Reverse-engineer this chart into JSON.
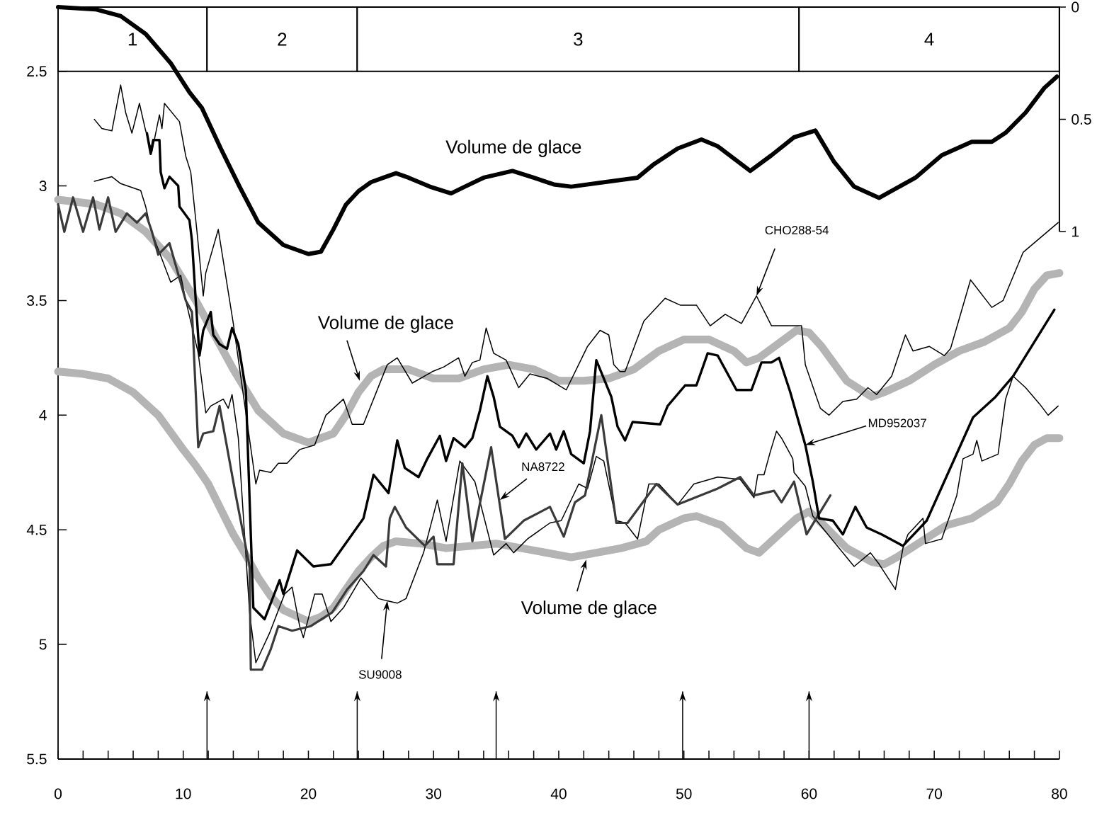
{
  "chart_data": {
    "type": "line",
    "xlim": [
      0,
      80
    ],
    "ylim": [
      5.5,
      2.22
    ],
    "y2lim": [
      3.35,
      0
    ],
    "xticks": [
      0,
      {
        "value": 2,
        "label": null
      },
      {
        "value": 4,
        "label": null
      },
      {
        "value": 6,
        "label": null
      },
      {
        "value": 8,
        "label": null
      },
      10,
      {
        "value": 12,
        "label": null
      },
      {
        "value": 14,
        "label": null
      },
      {
        "value": 16,
        "label": null
      },
      {
        "value": 18,
        "label": null
      },
      20,
      {
        "value": 22,
        "label": null
      },
      {
        "value": 24,
        "label": null
      },
      {
        "value": 26,
        "label": null
      },
      {
        "value": 28,
        "label": null
      },
      30,
      {
        "value": 32,
        "label": null
      },
      {
        "value": 34,
        "label": null
      },
      {
        "value": 36,
        "label": null
      },
      {
        "value": 38,
        "label": null
      },
      40,
      {
        "value": 42,
        "label": null
      },
      {
        "value": 44,
        "label": null
      },
      {
        "value": 46,
        "label": null
      },
      {
        "value": 48,
        "label": null
      },
      50,
      {
        "value": 52,
        "label": null
      },
      {
        "value": 54,
        "label": null
      },
      {
        "value": 56,
        "label": null
      },
      {
        "value": 58,
        "label": null
      },
      60,
      {
        "value": 62,
        "label": null
      },
      {
        "value": 64,
        "label": null
      },
      {
        "value": 66,
        "label": null
      },
      {
        "value": 68,
        "label": null
      },
      70,
      {
        "value": 72,
        "label": null
      },
      {
        "value": 74,
        "label": null
      },
      {
        "value": 76,
        "label": null
      },
      {
        "value": 78,
        "label": null
      },
      80
    ],
    "yticks": [
      2.5,
      3,
      3.5,
      4,
      4.5,
      5,
      5.5
    ],
    "y2ticks": [
      0,
      0.5,
      1
    ],
    "series": [
      {
        "color": "#b4b4b4",
        "x": [
          0,
          3,
          5,
          7,
          9,
          11,
          12,
          14,
          16,
          18,
          20,
          22,
          23,
          24,
          25,
          26,
          28,
          30,
          32,
          34,
          36,
          38,
          40,
          42,
          44,
          46,
          48,
          50,
          52,
          54,
          55,
          56,
          58,
          59,
          60,
          61,
          63,
          65,
          66,
          68,
          70,
          72,
          74,
          76,
          77,
          78,
          79,
          80
        ],
        "values": [
          3.06,
          3.08,
          3.12,
          3.2,
          3.32,
          3.5,
          3.6,
          3.8,
          3.98,
          4.08,
          4.12,
          4.08,
          4.0,
          3.9,
          3.83,
          3.8,
          3.8,
          3.84,
          3.84,
          3.8,
          3.78,
          3.8,
          3.85,
          3.85,
          3.84,
          3.8,
          3.72,
          3.67,
          3.67,
          3.72,
          3.77,
          3.75,
          3.67,
          3.63,
          3.64,
          3.7,
          3.85,
          3.92,
          3.9,
          3.85,
          3.78,
          3.72,
          3.68,
          3.62,
          3.55,
          3.45,
          3.39,
          3.38
        ]
      },
      {
        "color": "#b4b4b4",
        "x": [
          0,
          2,
          4,
          6,
          8,
          10,
          11,
          12,
          13,
          14,
          15,
          16,
          17,
          18,
          20,
          21,
          22,
          23,
          24,
          25,
          26,
          27,
          29,
          31,
          33,
          35,
          37,
          39,
          41,
          43,
          45,
          47,
          48,
          50,
          51,
          53,
          55,
          56,
          57,
          59,
          60,
          61,
          63,
          65,
          66,
          67,
          69,
          71,
          73,
          75,
          76,
          77,
          78,
          79,
          80
        ],
        "values": [
          3.81,
          3.82,
          3.84,
          3.9,
          4.0,
          4.15,
          4.22,
          4.3,
          4.41,
          4.52,
          4.61,
          4.71,
          4.79,
          4.85,
          4.9,
          4.88,
          4.84,
          4.76,
          4.68,
          4.62,
          4.57,
          4.55,
          4.56,
          4.58,
          4.57,
          4.56,
          4.58,
          4.6,
          4.62,
          4.6,
          4.58,
          4.55,
          4.5,
          4.45,
          4.44,
          4.48,
          4.58,
          4.6,
          4.55,
          4.45,
          4.42,
          4.47,
          4.58,
          4.64,
          4.65,
          4.62,
          4.55,
          4.48,
          4.45,
          4.38,
          4.3,
          4.2,
          4.13,
          4.1,
          4.1
        ]
      },
      {
        "color": "#000000",
        "x": [
          2.9,
          3.5,
          4.3,
          5,
          5.4,
          5.9,
          6.5,
          7,
          7.5,
          8.1,
          8.3,
          8.5,
          9.7,
          10.2,
          10.6,
          11.1,
          11.6,
          11.8,
          12.8,
          14,
          15.8,
          16.1,
          17,
          17.6,
          18.3,
          19.3,
          20.5,
          21.4,
          22.8,
          23.5,
          24.4,
          26.3,
          27.1,
          28.3,
          29.9,
          30.8,
          32,
          32.5,
          33.1,
          33.7,
          34.2,
          34.8,
          35.8,
          36.8,
          37.7,
          39.1,
          40.6,
          42.3,
          43.3,
          44,
          44.4,
          44.9,
          45.3,
          46.8,
          48.5,
          49.7,
          51,
          52.1,
          53.3,
          54.6,
          55.8,
          57,
          59.4,
          59.7,
          60.9,
          61.6,
          62.7,
          63.8,
          64.7,
          65.4,
          66.6,
          67.7,
          68.3,
          69.6,
          70.8,
          71.3,
          72.9,
          74.6,
          75.5,
          77.1,
          79.9
        ],
        "values": [
          2.71,
          2.75,
          2.76,
          2.56,
          2.68,
          2.77,
          2.64,
          2.76,
          2.85,
          2.69,
          2.75,
          2.64,
          2.72,
          2.87,
          2.94,
          3.2,
          3.48,
          3.38,
          3.19,
          3.6,
          4.3,
          4.24,
          4.25,
          4.21,
          4.21,
          4.15,
          4.13,
          4.0,
          3.93,
          4.04,
          4.04,
          3.78,
          3.75,
          3.86,
          3.81,
          3.79,
          3.75,
          3.83,
          3.77,
          3.76,
          3.62,
          3.73,
          3.76,
          3.88,
          3.82,
          3.84,
          3.89,
          3.7,
          3.63,
          3.65,
          3.78,
          3.81,
          3.81,
          3.59,
          3.49,
          3.52,
          3.52,
          3.61,
          3.56,
          3.6,
          3.48,
          3.61,
          3.61,
          3.78,
          3.97,
          4.0,
          3.94,
          3.93,
          3.88,
          3.91,
          3.83,
          3.65,
          3.72,
          3.7,
          3.74,
          3.71,
          3.41,
          3.53,
          3.5,
          3.29,
          3.16
        ]
      },
      {
        "color": "#000000",
        "x": [
          2.9,
          4.3,
          5,
          6.6,
          7,
          7.4,
          9,
          9.8,
          10.2,
          11.2,
          11.8,
          12.2,
          13.2,
          13.6,
          13.9,
          14.4,
          15.3,
          15.8,
          16.9,
          18.1,
          18.7,
          19.3,
          19.6,
          20.5,
          21.1,
          21.8,
          22.8,
          24.2,
          25.6,
          26.3,
          27.1,
          27.8,
          29.2,
          30.3,
          31,
          32.1,
          33.3,
          34.8,
          35.8,
          36.4,
          37.5,
          39.3,
          40.2,
          41.6,
          42.3,
          43,
          43.6,
          44.6,
          45.3,
          46.3,
          47.2,
          48,
          49.5,
          50.8,
          52.7,
          54.5,
          55.6,
          55.9,
          56.4,
          56.9,
          57.4,
          57.8,
          58.7,
          58.8,
          59.7,
          60.3,
          63.6,
          64.9,
          65.6,
          66.9,
          67.5,
          67.9,
          69.1,
          69.3,
          70.6,
          71.8,
          72.3,
          73.1,
          73.4,
          73.8,
          75.1,
          75.7,
          76.3,
          77.3,
          78.4,
          79.1,
          79.9
        ],
        "values": [
          2.98,
          2.96,
          2.99,
          3.02,
          3.09,
          3.19,
          3.42,
          3.39,
          3.5,
          3.73,
          3.99,
          3.96,
          3.93,
          3.97,
          3.91,
          4.1,
          4.86,
          5.08,
          4.95,
          4.78,
          4.75,
          4.92,
          4.97,
          4.78,
          4.78,
          4.9,
          4.84,
          4.71,
          4.8,
          4.81,
          4.82,
          4.8,
          4.6,
          4.37,
          4.55,
          4.2,
          4.29,
          4.61,
          4.56,
          4.6,
          4.54,
          4.47,
          4.46,
          4.3,
          4.32,
          4.18,
          4.2,
          4.46,
          4.47,
          4.54,
          4.3,
          4.3,
          4.39,
          4.3,
          4.27,
          4.28,
          4.36,
          4.26,
          4.26,
          4.16,
          4.07,
          4.1,
          4.19,
          4.25,
          4.31,
          4.44,
          4.66,
          4.6,
          4.65,
          4.76,
          4.58,
          4.52,
          4.45,
          4.56,
          4.54,
          4.35,
          4.19,
          4.17,
          4.11,
          4.2,
          4.17,
          3.93,
          3.83,
          3.88,
          3.95,
          4.0,
          3.96
        ]
      },
      {
        "color": "#3a3a3a",
        "x": [
          0,
          0.5,
          1.2,
          2,
          2.8,
          3.3,
          4,
          4.6,
          5.5,
          6.3,
          7,
          7.5,
          8,
          8.9,
          10.2,
          10.7,
          11.2,
          11.6,
          12.4,
          12.9,
          14.2,
          15.3,
          15.4,
          16.3,
          17,
          17.6,
          18.7,
          20.2,
          21.9,
          23.1,
          24.4,
          25.2,
          26.2,
          26.5,
          26.9,
          27.8,
          29.3,
          30,
          30.3,
          31.6,
          32.3,
          33.1,
          34.6,
          35.7,
          37.2,
          39.3,
          40.4,
          41.3,
          42.1,
          43.4,
          44.6,
          45.5,
          47.8,
          49.5,
          52.7,
          54.5,
          55.6,
          57.2,
          57.8,
          58.8,
          59.8,
          61.7
        ],
        "values": [
          3.08,
          3.2,
          3.05,
          3.2,
          3.05,
          3.19,
          3.05,
          3.2,
          3.12,
          3.16,
          3.12,
          3.2,
          3.3,
          3.25,
          3.5,
          3.55,
          4.14,
          4.08,
          4.07,
          3.96,
          4.35,
          4.66,
          5.11,
          5.11,
          5.02,
          4.92,
          4.94,
          4.92,
          4.86,
          4.76,
          4.68,
          4.61,
          4.66,
          4.45,
          4.4,
          4.49,
          4.57,
          4.53,
          4.65,
          4.65,
          4.21,
          4.55,
          4.14,
          4.54,
          4.46,
          4.4,
          4.53,
          4.38,
          4.35,
          4.0,
          4.47,
          4.47,
          4.3,
          4.39,
          4.32,
          4.27,
          4.35,
          4.33,
          4.38,
          4.29,
          4.52,
          4.35
        ]
      },
      {
        "color": "#000000",
        "x": [
          7.1,
          7.4,
          7.6,
          8.1,
          8.2,
          8.5,
          8.9,
          9.6,
          9.7,
          10.5,
          10.7,
          11,
          11.3,
          11.6,
          12.2,
          12.4,
          12.9,
          13.5,
          13.9,
          14.4,
          15,
          15.6,
          16.5,
          17.7,
          18,
          19.1,
          20.4,
          21.8,
          24.4,
          25.2,
          26.4,
          27.1,
          27.7,
          28.8,
          29.5,
          30.5,
          31,
          31.6,
          32.5,
          33.1,
          33.7,
          34.3,
          34.8,
          35.3,
          36.3,
          36.8,
          37.4,
          38.2,
          39.3,
          39.8,
          40.4,
          41,
          42,
          42.5,
          43,
          44.2,
          44.7,
          45.3,
          45.9,
          48.1,
          48.7,
          50.1,
          51,
          51.9,
          52.7,
          54.2,
          55.4,
          56.2,
          57,
          57.6,
          58.5,
          59.7,
          60.3,
          60.8,
          61.9,
          62.7,
          63.7,
          64.6,
          65.8,
          67.5,
          69.4,
          73.1,
          74.9,
          76.3,
          79.6
        ],
        "values": [
          2.77,
          2.86,
          2.8,
          2.8,
          2.94,
          3.01,
          2.96,
          3.0,
          3.09,
          3.15,
          3.24,
          3.5,
          3.74,
          3.63,
          3.55,
          3.65,
          3.69,
          3.71,
          3.62,
          3.69,
          3.89,
          4.84,
          4.89,
          4.72,
          4.78,
          4.59,
          4.66,
          4.65,
          4.45,
          4.26,
          4.34,
          4.11,
          4.23,
          4.27,
          4.19,
          4.09,
          4.2,
          4.1,
          4.14,
          4.1,
          3.98,
          3.83,
          3.92,
          4.05,
          4.09,
          4.14,
          4.08,
          4.15,
          4.08,
          4.15,
          4.07,
          4.17,
          4.21,
          4.07,
          3.76,
          3.92,
          4.05,
          4.11,
          4.03,
          4.04,
          3.96,
          3.87,
          3.87,
          3.73,
          3.74,
          3.89,
          3.89,
          3.77,
          3.77,
          3.75,
          3.9,
          4.13,
          4.29,
          4.45,
          4.46,
          4.52,
          4.4,
          4.49,
          4.52,
          4.57,
          4.46,
          4.01,
          3.92,
          3.83,
          3.54
        ]
      },
      {
        "color": "#000000",
        "axis": "y2",
        "x": [
          0,
          3,
          5,
          7,
          9,
          10.5,
          11.5,
          13,
          14.5,
          16,
          18,
          20,
          21,
          22,
          23,
          24,
          25,
          26,
          27,
          28,
          29.7,
          31.4,
          32.5,
          34,
          36.3,
          38,
          39.6,
          41,
          46.3,
          47.6,
          49.5,
          51.4,
          52.7,
          55.3,
          57,
          58.8,
          60.5,
          62,
          63.6,
          65.6,
          68.5,
          70.6,
          73,
          74.6,
          75.7,
          77.3,
          78.8,
          79.8
        ],
        "values": [
          0,
          0.01,
          0.04,
          0.12,
          0.25,
          0.38,
          0.45,
          0.63,
          0.8,
          0.96,
          1.06,
          1.1,
          1.09,
          0.99,
          0.88,
          0.82,
          0.78,
          0.76,
          0.74,
          0.76,
          0.8,
          0.83,
          0.8,
          0.76,
          0.73,
          0.76,
          0.79,
          0.8,
          0.76,
          0.7,
          0.63,
          0.59,
          0.62,
          0.73,
          0.66,
          0.58,
          0.55,
          0.69,
          0.8,
          0.85,
          0.76,
          0.66,
          0.6,
          0.6,
          0.56,
          0.47,
          0.36,
          0.31
        ]
      }
    ],
    "bands": [
      {
        "axis": "x",
        "from": 0,
        "to": 11.9,
        "label": "1",
        "color": "#ffffff"
      },
      {
        "axis": "x",
        "from": 11.9,
        "to": 23.9,
        "label": "2",
        "color": "#ffffff"
      },
      {
        "axis": "x",
        "from": 23.9,
        "to": 59.2,
        "label": "3",
        "color": "#ffffff"
      },
      {
        "axis": "x",
        "from": 59.2,
        "to": 80,
        "label": "4",
        "color": "#ffffff"
      }
    ],
    "ref_lines": [
      {
        "axis": "x",
        "value": 11.9
      },
      {
        "axis": "x",
        "value": 23.9
      },
      {
        "axis": "x",
        "value": 35
      },
      {
        "axis": "x",
        "value": 49.9
      },
      {
        "axis": "x",
        "value": 60
      }
    ],
    "annotations": [
      "Volume de glace",
      {
        "text": "Volume de glace",
        "x": 24.1,
        "y": 3.85
      },
      {
        "text": "Volume de glace",
        "x": 42.2,
        "y": 4.63
      },
      {
        "text": "CHO288-54",
        "x": 55.8,
        "y": 3.48
      },
      {
        "text": "MD952037",
        "x": 59.7,
        "y": 4.13
      },
      {
        "text": "NA8722",
        "x": 35.3,
        "y": 4.37
      },
      {
        "text": "SU9008",
        "x": 26.3,
        "y": 4.81
      }
    ]
  }
}
